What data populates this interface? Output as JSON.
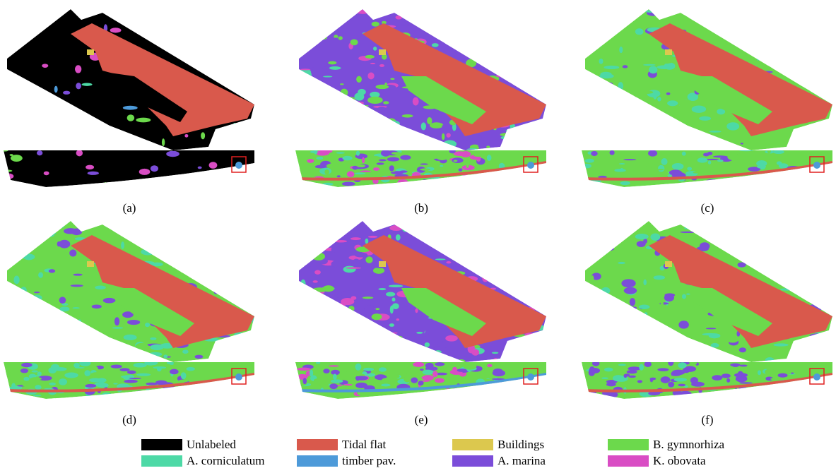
{
  "panels": [
    {
      "label": "(a)"
    },
    {
      "label": "(b)"
    },
    {
      "label": "(c)"
    },
    {
      "label": "(d)"
    },
    {
      "label": "(e)"
    },
    {
      "label": "(f)"
    }
  ],
  "legend": [
    {
      "name": "Unlabeled",
      "color": "#000000"
    },
    {
      "name": "Tidal flat",
      "color": "#d9594c"
    },
    {
      "name": "Buildings",
      "color": "#dcc84e"
    },
    {
      "name": "B. gymnorhiza",
      "color": "#6cd94c"
    },
    {
      "name": "A. corniculatum",
      "color": "#4dd9a6"
    },
    {
      "name": "timber pav.",
      "color": "#4d9ad9"
    },
    {
      "name": "A. marina",
      "color": "#7b4dd9"
    },
    {
      "name": "K. obovata",
      "color": "#d94dc4"
    }
  ]
}
